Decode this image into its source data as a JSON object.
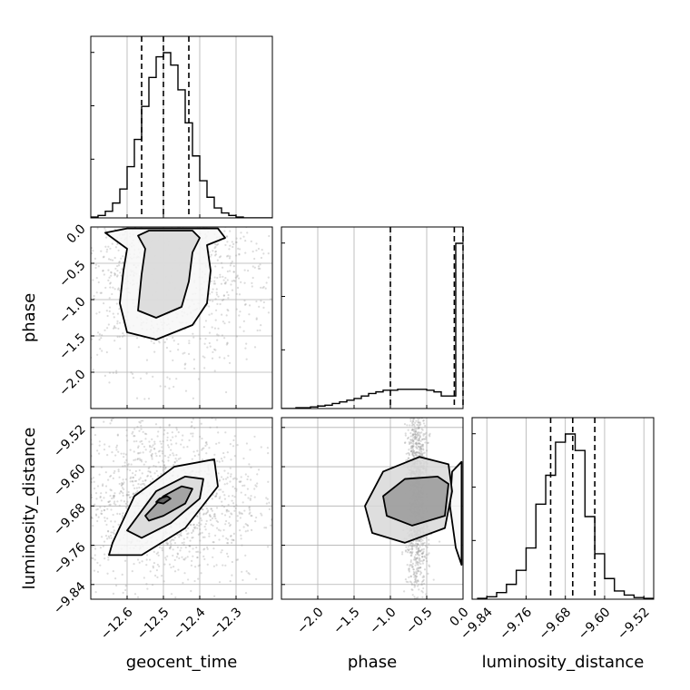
{
  "chart_data": {
    "type": "corner",
    "grid": true,
    "parameters": [
      {
        "name": "geocent_time",
        "label": "geocent_time",
        "range": [
          -12.7,
          -12.2
        ],
        "ticks": [
          -12.6,
          -12.5,
          -12.4,
          -12.3
        ],
        "tick_labels": [
          "−12.6",
          "−12.5",
          "−12.4",
          "−12.3"
        ],
        "quantiles": [
          -12.56,
          -12.5,
          -12.43
        ]
      },
      {
        "name": "phase",
        "label": "phase",
        "range": [
          -2.5,
          0.0
        ],
        "ticks": [
          -2.0,
          -1.5,
          -1.0,
          -0.5,
          0.0
        ],
        "tick_labels": [
          "−2.0",
          "−1.5",
          "−1.0",
          "−0.5",
          "0.0"
        ],
        "quantiles": [
          -1.0,
          -0.12,
          0.0
        ]
      },
      {
        "name": "luminosity_distance",
        "label": "luminosity_distance",
        "range": [
          -9.87,
          -9.5
        ],
        "ticks": [
          -9.84,
          -9.76,
          -9.68,
          -9.6,
          -9.52
        ],
        "tick_labels": [
          "−9.84",
          "−9.76",
          "−9.68",
          "−9.60",
          "−9.52"
        ],
        "quantiles": [
          -9.71,
          -9.665,
          -9.62
        ]
      }
    ],
    "histograms": [
      {
        "param": "geocent_time",
        "bin_edges": [
          -12.7,
          -12.68,
          -12.66,
          -12.64,
          -12.62,
          -12.6,
          -12.58,
          -12.56,
          -12.54,
          -12.52,
          -12.5,
          -12.48,
          -12.46,
          -12.44,
          -12.42,
          -12.4,
          -12.38,
          -12.36,
          -12.34,
          -12.32,
          -12.3,
          -12.28,
          -12.26,
          -12.24,
          -12.22,
          -12.2
        ],
        "counts": [
          1,
          3,
          8,
          18,
          35,
          62,
          95,
          135,
          170,
          195,
          200,
          185,
          155,
          115,
          75,
          45,
          25,
          12,
          6,
          3,
          1,
          0,
          0,
          0,
          0
        ]
      },
      {
        "param": "phase",
        "bin_edges": [
          -2.5,
          -2.4,
          -2.3,
          -2.2,
          -2.1,
          -2.0,
          -1.9,
          -1.8,
          -1.7,
          -1.6,
          -1.5,
          -1.4,
          -1.3,
          -1.2,
          -1.1,
          -1.0,
          -0.9,
          -0.8,
          -0.7,
          -0.6,
          -0.5,
          -0.4,
          -0.3,
          -0.2,
          -0.1,
          0.0
        ],
        "counts": [
          0,
          0,
          1,
          1,
          2,
          3,
          4,
          6,
          8,
          10,
          12,
          15,
          18,
          20,
          22,
          22,
          23,
          23,
          23,
          23,
          22,
          20,
          15,
          15,
          198
        ]
      },
      {
        "param": "luminosity_distance",
        "bin_edges": [
          -9.86,
          -9.84,
          -9.82,
          -9.8,
          -9.78,
          -9.76,
          -9.74,
          -9.72,
          -9.7,
          -9.68,
          -9.66,
          -9.64,
          -9.62,
          -9.6,
          -9.58,
          -9.56,
          -9.54,
          -9.52,
          -9.5
        ],
        "counts": [
          1,
          3,
          8,
          18,
          35,
          62,
          115,
          150,
          190,
          200,
          180,
          100,
          55,
          25,
          10,
          5,
          2,
          1
        ]
      }
    ],
    "pair_plots": [
      {
        "x": "geocent_time",
        "y": "phase",
        "contour_levels": [
          [
            [
              -12.54,
              -0.05
            ],
            [
              -12.42,
              -0.05
            ],
            [
              -12.4,
              -0.15
            ],
            [
              -12.42,
              -0.35
            ],
            [
              -12.43,
              -0.75
            ],
            [
              -12.45,
              -1.1
            ],
            [
              -12.52,
              -1.25
            ],
            [
              -12.57,
              -1.15
            ],
            [
              -12.56,
              -0.65
            ],
            [
              -12.55,
              -0.3
            ],
            [
              -12.57,
              -0.12
            ]
          ],
          [
            [
              -12.6,
              -0.02
            ],
            [
              -12.35,
              -0.02
            ],
            [
              -12.33,
              -0.15
            ],
            [
              -12.38,
              -0.25
            ],
            [
              -12.37,
              -0.6
            ],
            [
              -12.38,
              -1.05
            ],
            [
              -12.42,
              -1.35
            ],
            [
              -12.52,
              -1.55
            ],
            [
              -12.6,
              -1.45
            ],
            [
              -12.62,
              -1.05
            ],
            [
              -12.61,
              -0.6
            ],
            [
              -12.6,
              -0.3
            ],
            [
              -12.66,
              -0.08
            ]
          ]
        ]
      },
      {
        "x": "geocent_time",
        "y": "luminosity_distance",
        "contour_levels": [
          [
            [
              -12.51,
              -9.665
            ],
            [
              -12.49,
              -9.66
            ],
            [
              -12.48,
              -9.665
            ],
            [
              -12.5,
              -9.675
            ],
            [
              -12.52,
              -9.672
            ]
          ],
          [
            [
              -12.55,
              -9.7
            ],
            [
              -12.5,
              -9.66
            ],
            [
              -12.45,
              -9.64
            ],
            [
              -12.42,
              -9.645
            ],
            [
              -12.44,
              -9.675
            ],
            [
              -12.5,
              -9.7
            ],
            [
              -12.54,
              -9.71
            ]
          ],
          [
            [
              -12.6,
              -9.73
            ],
            [
              -12.52,
              -9.65
            ],
            [
              -12.44,
              -9.62
            ],
            [
              -12.39,
              -9.625
            ],
            [
              -12.4,
              -9.665
            ],
            [
              -12.48,
              -9.715
            ],
            [
              -12.56,
              -9.745
            ]
          ],
          [
            [
              -12.64,
              -9.755
            ],
            [
              -12.58,
              -9.66
            ],
            [
              -12.47,
              -9.6
            ],
            [
              -12.36,
              -9.585
            ],
            [
              -12.35,
              -9.64
            ],
            [
              -12.44,
              -9.725
            ],
            [
              -12.56,
              -9.78
            ],
            [
              -12.65,
              -9.78
            ]
          ]
        ]
      },
      {
        "x": "phase",
        "y": "luminosity_distance",
        "contour_levels": [
          [
            [
              -1.1,
              -9.66
            ],
            [
              -0.8,
              -9.625
            ],
            [
              -0.35,
              -9.62
            ],
            [
              -0.2,
              -9.635
            ],
            [
              -0.25,
              -9.7
            ],
            [
              -0.7,
              -9.72
            ],
            [
              -1.05,
              -9.7
            ]
          ],
          [
            [
              -1.35,
              -9.68
            ],
            [
              -1.1,
              -9.61
            ],
            [
              -0.6,
              -9.58
            ],
            [
              -0.2,
              -9.595
            ],
            [
              -0.15,
              -9.65
            ],
            [
              -0.25,
              -9.725
            ],
            [
              -0.8,
              -9.755
            ],
            [
              -1.25,
              -9.735
            ]
          ],
          [
            [
              -0.02,
              -9.59
            ],
            [
              -0.15,
              -9.61
            ],
            [
              -0.18,
              -9.68
            ],
            [
              -0.1,
              -9.765
            ],
            [
              -0.02,
              -9.8
            ]
          ]
        ]
      }
    ]
  }
}
